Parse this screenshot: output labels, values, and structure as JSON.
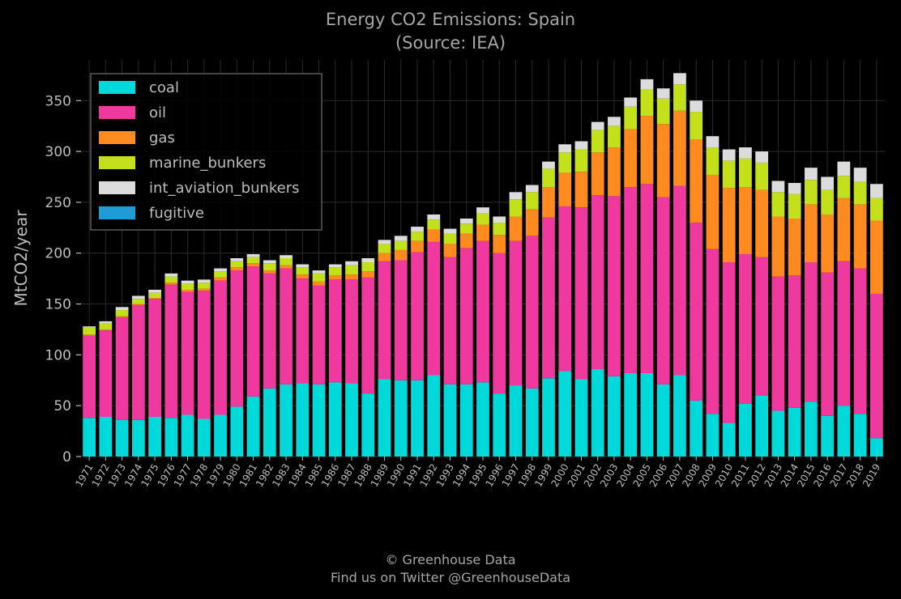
{
  "header": {
    "title": "Energy CO2 Emissions: Spain",
    "subtitle": "(Source: IEA)"
  },
  "footer": {
    "line1": "© Greenhouse Data",
    "line2": "Find us on Twitter @GreenhouseData"
  },
  "colors": {
    "background": "#000000",
    "grid": "#2b2b2b",
    "text": "#bdbdbd",
    "coal": "#00d9d9",
    "oil": "#f0399e",
    "gas": "#ff8a1f",
    "marine_bunkers": "#c3e01a",
    "int_aviation_bunkers": "#dcdcdc",
    "fugitive": "#1f9bd6"
  },
  "chart_data": {
    "type": "bar",
    "stacked": true,
    "title": "Energy CO2 Emissions: Spain",
    "subtitle": "(Source: IEA)",
    "xlabel": "",
    "ylabel": "MtCO2/year",
    "ylim": [
      0,
      390
    ],
    "yticks": [
      0,
      50,
      100,
      150,
      200,
      250,
      300,
      350
    ],
    "grid": true,
    "legend_position": "top-left",
    "categories": [
      "1971",
      "1972",
      "1973",
      "1974",
      "1975",
      "1976",
      "1977",
      "1978",
      "1979",
      "1980",
      "1981",
      "1982",
      "1983",
      "1984",
      "1985",
      "1986",
      "1987",
      "1988",
      "1989",
      "1990",
      "1991",
      "1992",
      "1993",
      "1994",
      "1995",
      "1996",
      "1997",
      "1998",
      "1999",
      "2000",
      "2001",
      "2002",
      "2003",
      "2004",
      "2005",
      "2006",
      "2007",
      "2008",
      "2009",
      "2010",
      "2011",
      "2012",
      "2013",
      "2014",
      "2015",
      "2016",
      "2017",
      "2018",
      "2019"
    ],
    "series": [
      {
        "name": "coal",
        "color": "#00d9d9",
        "values": [
          38,
          39,
          36,
          36,
          39,
          38,
          41,
          37,
          41,
          49,
          59,
          67,
          71,
          72,
          71,
          73,
          72,
          62,
          76,
          75,
          75,
          80,
          71,
          71,
          73,
          62,
          70,
          67,
          77,
          84,
          76,
          86,
          79,
          82,
          82,
          71,
          80,
          55,
          42,
          33,
          52,
          60,
          45,
          48,
          54,
          40,
          50,
          42,
          18
        ]
      },
      {
        "name": "oil",
        "color": "#f0399e",
        "values": [
          81,
          85,
          101,
          113,
          116,
          131,
          121,
          126,
          132,
          134,
          128,
          113,
          114,
          103,
          97,
          101,
          102,
          114,
          116,
          118,
          126,
          131,
          125,
          134,
          139,
          138,
          142,
          150,
          158,
          162,
          169,
          171,
          177,
          183,
          186,
          184,
          186,
          175,
          162,
          158,
          147,
          136,
          132,
          130,
          137,
          141,
          142,
          143,
          142
        ]
      },
      {
        "name": "gas",
        "color": "#ff8a1f",
        "values": [
          1,
          1,
          1,
          1,
          1,
          2,
          2,
          2,
          3,
          3,
          3,
          3,
          3,
          4,
          4,
          4,
          5,
          6,
          8,
          10,
          11,
          12,
          13,
          14,
          16,
          18,
          24,
          26,
          30,
          33,
          35,
          42,
          48,
          57,
          67,
          72,
          74,
          82,
          73,
          73,
          66,
          66,
          59,
          56,
          57,
          57,
          62,
          63,
          72
        ]
      },
      {
        "name": "marine_bunkers",
        "color": "#c3e01a",
        "values": [
          7,
          6,
          6,
          5,
          5,
          6,
          6,
          6,
          6,
          6,
          6,
          7,
          7,
          7,
          8,
          8,
          9,
          9,
          9,
          9,
          9,
          10,
          10,
          10,
          11,
          12,
          17,
          17,
          18,
          20,
          22,
          22,
          21,
          22,
          26,
          25,
          26,
          27,
          27,
          27,
          28,
          27,
          24,
          24,
          24,
          24,
          22,
          22,
          22
        ]
      },
      {
        "name": "int_aviation_bunkers",
        "color": "#dcdcdc",
        "values": [
          1,
          2,
          3,
          3,
          3,
          3,
          3,
          3,
          3,
          3,
          3,
          3,
          3,
          3,
          3,
          3,
          4,
          4,
          4,
          5,
          5,
          5,
          5,
          5,
          6,
          6,
          7,
          7,
          7,
          8,
          8,
          8,
          9,
          9,
          10,
          10,
          11,
          11,
          11,
          11,
          11,
          11,
          11,
          11,
          12,
          13,
          14,
          14,
          14
        ]
      },
      {
        "name": "fugitive",
        "color": "#1f9bd6",
        "values": [
          0,
          0,
          0,
          0,
          0,
          0,
          0,
          0,
          0,
          0,
          0,
          0,
          0,
          0,
          0,
          0,
          0,
          0,
          0,
          0,
          0,
          0,
          0,
          0,
          0,
          0,
          0,
          0,
          0,
          0,
          0,
          0,
          0,
          0,
          0,
          0,
          0,
          0,
          0,
          0,
          0,
          0,
          0,
          0,
          0,
          0,
          0,
          0,
          0
        ]
      }
    ]
  }
}
